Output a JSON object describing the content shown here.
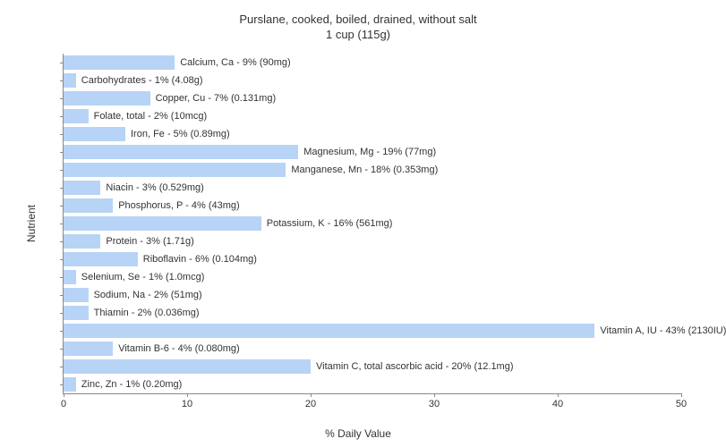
{
  "chart": {
    "type": "bar-horizontal",
    "title_line1": "Purslane, cooked, boiled, drained, without salt",
    "title_line2": "1 cup (115g)",
    "title_fontsize": 13,
    "y_axis_label": "Nutrient",
    "x_axis_label": "% Daily Value",
    "label_fontsize": 12,
    "xlim": [
      0,
      50
    ],
    "xtick_step": 10,
    "xticks": [
      0,
      10,
      20,
      30,
      40,
      50
    ],
    "bar_color": "#b7d3f6",
    "text_color": "#333333",
    "axis_color": "#888888",
    "background_color": "#ffffff",
    "bar_label_fontsize": 11,
    "tick_fontsize": 11,
    "bars": [
      {
        "name": "Calcium, Ca",
        "pct": 9,
        "amount": "90mg",
        "label": "Calcium, Ca - 9% (90mg)"
      },
      {
        "name": "Carbohydrates",
        "pct": 1,
        "amount": "4.08g",
        "label": "Carbohydrates - 1% (4.08g)"
      },
      {
        "name": "Copper, Cu",
        "pct": 7,
        "amount": "0.131mg",
        "label": "Copper, Cu - 7% (0.131mg)"
      },
      {
        "name": "Folate, total",
        "pct": 2,
        "amount": "10mcg",
        "label": "Folate, total - 2% (10mcg)"
      },
      {
        "name": "Iron, Fe",
        "pct": 5,
        "amount": "0.89mg",
        "label": "Iron, Fe - 5% (0.89mg)"
      },
      {
        "name": "Magnesium, Mg",
        "pct": 19,
        "amount": "77mg",
        "label": "Magnesium, Mg - 19% (77mg)"
      },
      {
        "name": "Manganese, Mn",
        "pct": 18,
        "amount": "0.353mg",
        "label": "Manganese, Mn - 18% (0.353mg)"
      },
      {
        "name": "Niacin",
        "pct": 3,
        "amount": "0.529mg",
        "label": "Niacin - 3% (0.529mg)"
      },
      {
        "name": "Phosphorus, P",
        "pct": 4,
        "amount": "43mg",
        "label": "Phosphorus, P - 4% (43mg)"
      },
      {
        "name": "Potassium, K",
        "pct": 16,
        "amount": "561mg",
        "label": "Potassium, K - 16% (561mg)"
      },
      {
        "name": "Protein",
        "pct": 3,
        "amount": "1.71g",
        "label": "Protein - 3% (1.71g)"
      },
      {
        "name": "Riboflavin",
        "pct": 6,
        "amount": "0.104mg",
        "label": "Riboflavin - 6% (0.104mg)"
      },
      {
        "name": "Selenium, Se",
        "pct": 1,
        "amount": "1.0mcg",
        "label": "Selenium, Se - 1% (1.0mcg)"
      },
      {
        "name": "Sodium, Na",
        "pct": 2,
        "amount": "51mg",
        "label": "Sodium, Na - 2% (51mg)"
      },
      {
        "name": "Thiamin",
        "pct": 2,
        "amount": "0.036mg",
        "label": "Thiamin - 2% (0.036mg)"
      },
      {
        "name": "Vitamin A, IU",
        "pct": 43,
        "amount": "2130IU",
        "label": "Vitamin A, IU - 43% (2130IU)"
      },
      {
        "name": "Vitamin B-6",
        "pct": 4,
        "amount": "0.080mg",
        "label": "Vitamin B-6 - 4% (0.080mg)"
      },
      {
        "name": "Vitamin C, total ascorbic acid",
        "pct": 20,
        "amount": "12.1mg",
        "label": "Vitamin C, total ascorbic acid - 20% (12.1mg)"
      },
      {
        "name": "Zinc, Zn",
        "pct": 1,
        "amount": "0.20mg",
        "label": "Zinc, Zn - 1% (0.20mg)"
      }
    ]
  }
}
